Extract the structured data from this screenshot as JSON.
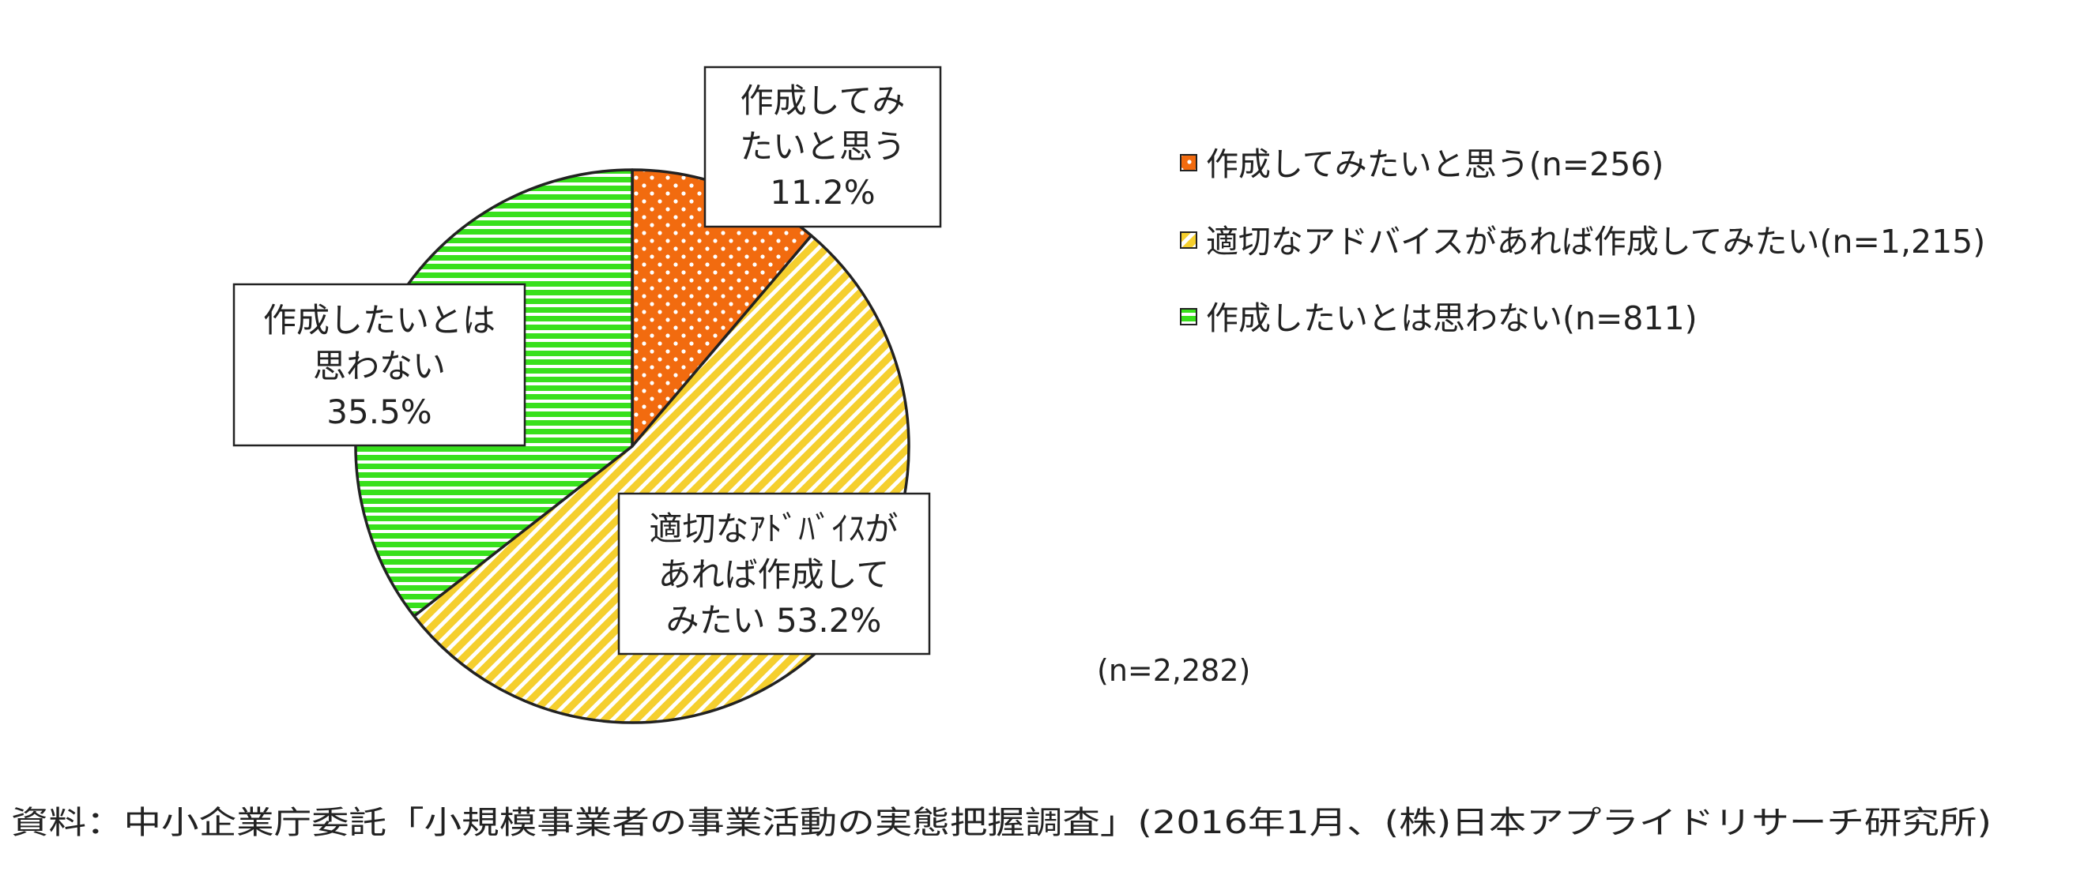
{
  "chart_data": {
    "type": "pie",
    "slices": [
      {
        "key": "want",
        "value": 11.2,
        "callout": [
          "作成してみ",
          "たいと思う",
          "11.2%"
        ],
        "legend": "作成してみたいと思う(n=256)",
        "color": "#f26b0f",
        "pattern": "dots"
      },
      {
        "key": "advice",
        "value": 53.2,
        "callout": [
          "適切なｱﾄﾞﾊﾞｲｽが",
          "あれば作成して",
          "みたい 53.2%"
        ],
        "legend": "適切なアドバイスがあれば作成してみたい(n=1,215)",
        "color": "#f5cf2e",
        "pattern": "diagonal"
      },
      {
        "key": "not",
        "value": 35.5,
        "callout": [
          "作成したいとは",
          "思わない",
          "35.5%"
        ],
        "legend": "作成したいとは思わない(n=811)",
        "color": "#38e01c",
        "pattern": "horizontal"
      }
    ],
    "legend_position": "right",
    "total_note": "(n=2,282)"
  },
  "source": "資料：中小企業庁委託「小規模事業者の事業活動の実態把握調査」(2016年1月、(株)日本アプライドリサーチ研究所)"
}
